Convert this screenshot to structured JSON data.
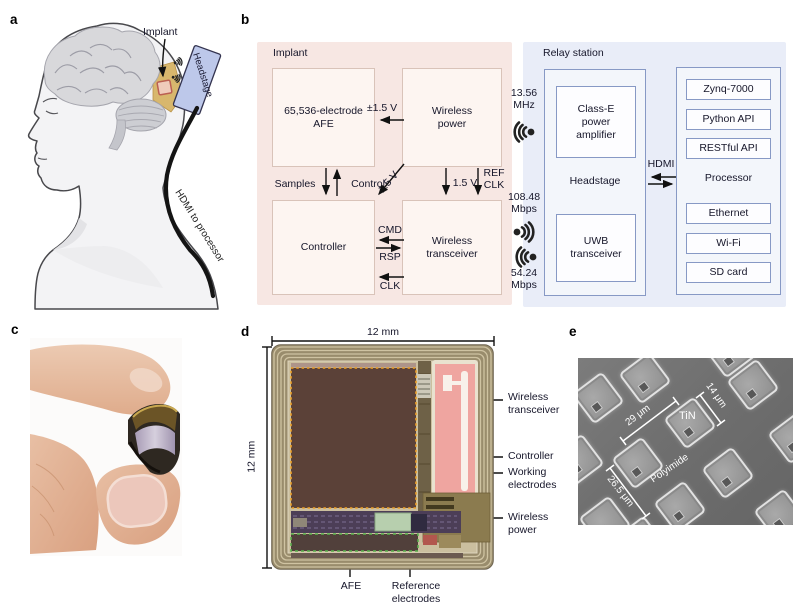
{
  "panel_labels": {
    "a": "a",
    "b": "b",
    "c": "c",
    "d": "d",
    "e": "e"
  },
  "panel_a": {
    "implant": "Implant",
    "headstage": "Headstage",
    "cable": "HDMI to processor"
  },
  "panel_b": {
    "implant_title": "Implant",
    "relay_title": "Relay station",
    "boxes": {
      "afe": "65,536-electrode AFE",
      "wireless_power": "Wireless power",
      "controller": "Controller",
      "wireless_transceiver": "Wireless transceiver",
      "class_e": "Class-E power amplifier",
      "headstage": "Headstage",
      "uwb": "UWB transceiver",
      "processor": "Processor"
    },
    "processor_items": [
      "Zynq-7000",
      "Python API",
      "RESTful API",
      "Ethernet",
      "Wi-Fi",
      "SD card"
    ],
    "signals": {
      "pm": "±1.5 V",
      "samples": "Samples",
      "control": "Control",
      "diag": "1.5 V",
      "v15": "1.5 V",
      "refclk": "REF CLK",
      "cmd": "CMD",
      "rsp": "RSP",
      "clk": "CLK",
      "hdmi": "HDMI",
      "freq": "13.56 MHz",
      "down_rate": "108.48 Mbps",
      "up_rate": "54.24 Mbps"
    }
  },
  "panel_d": {
    "dim_top": "12 mm",
    "dim_left": "12 mm",
    "callout_transceiver": "Wireless transceiver",
    "callout_controller": "Controller",
    "callout_working": "Working electrodes",
    "callout_power": "Wireless power",
    "callout_afe": "AFE",
    "callout_reference": "Reference electrodes"
  },
  "panel_e": {
    "pitch": "29 μm",
    "size": "14 μm",
    "material": "TiN",
    "substrate": "Polyimide",
    "diagonal": "26.5 μm"
  },
  "colors": {
    "implant_bg": "#f7e7e3",
    "relay_bg": "#e9edf8",
    "relay_border": "#8799c5",
    "implant_box_border": "#d9c3b9",
    "chip_array": "#5b4138",
    "chip_pink": "#efa5a0",
    "accent_orange": "#efa126",
    "accent_green": "#58b34c"
  }
}
